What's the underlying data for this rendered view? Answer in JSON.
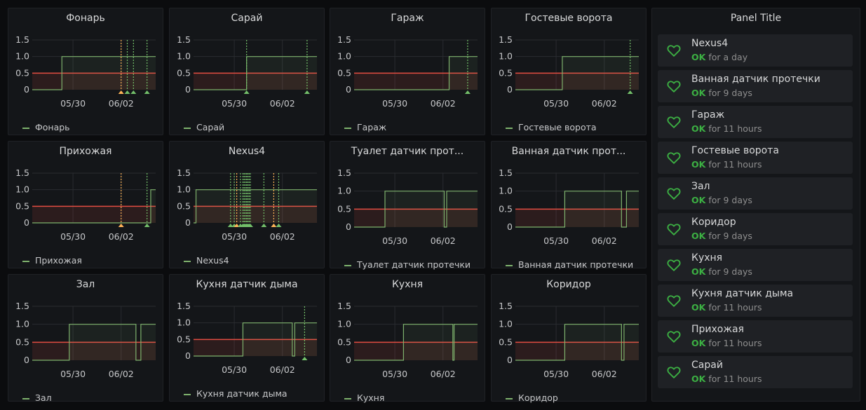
{
  "graphs": [
    {
      "title": "Фонарь",
      "legend": "Фонарь",
      "x_ticks": [
        "05/30",
        "06/02"
      ],
      "y_ticks": [
        "1.5",
        "1.0",
        "0.5",
        "0"
      ],
      "threshold": 0.5,
      "series": [
        [
          0,
          0
        ],
        [
          0.24,
          0
        ],
        [
          0.24,
          1
        ],
        [
          1,
          1
        ]
      ],
      "annotations": [
        {
          "x": 0.72,
          "color": "#ffb357"
        },
        {
          "x": 0.77,
          "color": "#73bf69"
        },
        {
          "x": 0.82,
          "color": "#73bf69"
        },
        {
          "x": 0.93,
          "color": "#73bf69"
        }
      ]
    },
    {
      "title": "Сарай",
      "legend": "Сарай",
      "x_ticks": [
        "05/30",
        "06/02"
      ],
      "y_ticks": [
        "1.5",
        "1.0",
        "0.5",
        "0"
      ],
      "threshold": 0.5,
      "series": [
        [
          0,
          0
        ],
        [
          0.43,
          0
        ],
        [
          0.43,
          1
        ],
        [
          1,
          1
        ]
      ],
      "annotations": [
        {
          "x": 0.43,
          "color": "#73bf69"
        },
        {
          "x": 0.92,
          "color": "#73bf69"
        }
      ]
    },
    {
      "title": "Гараж",
      "legend": "Гараж",
      "x_ticks": [
        "05/30",
        "06/02"
      ],
      "y_ticks": [
        "1.5",
        "1.0",
        "0.5",
        "0"
      ],
      "threshold": 0.5,
      "series": [
        [
          0,
          0
        ],
        [
          0.77,
          0
        ],
        [
          0.77,
          1
        ],
        [
          1,
          1
        ]
      ],
      "annotations": [
        {
          "x": 0.92,
          "color": "#73bf69"
        }
      ]
    },
    {
      "title": "Гостевые ворота",
      "legend": "Гостевые ворота",
      "x_ticks": [
        "05/30",
        "06/02"
      ],
      "y_ticks": [
        "1.5",
        "1.0",
        "0.5",
        "0"
      ],
      "threshold": 0.5,
      "series": [
        [
          0,
          0
        ],
        [
          0.38,
          0
        ],
        [
          0.38,
          1
        ],
        [
          1,
          1
        ]
      ],
      "annotations": [
        {
          "x": 0.93,
          "color": "#73bf69"
        }
      ]
    },
    {
      "title": "Прихожая",
      "legend": "Прихожая",
      "x_ticks": [
        "05/30",
        "06/02"
      ],
      "y_ticks": [
        "1.5",
        "1.0",
        "0.5",
        "0"
      ],
      "threshold": 0.5,
      "series": [
        [
          0,
          0
        ],
        [
          0.96,
          0
        ],
        [
          0.96,
          1
        ],
        [
          1,
          1
        ]
      ],
      "annotations": [
        {
          "x": 0.72,
          "color": "#ffb357"
        },
        {
          "x": 0.93,
          "color": "#73bf69"
        }
      ]
    },
    {
      "title": "Nexus4",
      "legend": "Nexus4",
      "x_ticks": [
        "05/30",
        "06/02"
      ],
      "y_ticks": [
        "1.5",
        "1.0",
        "0.5",
        "0"
      ],
      "threshold": 0.5,
      "series": [
        [
          0,
          0
        ],
        [
          0.02,
          0
        ],
        [
          0.02,
          1
        ],
        [
          1,
          1
        ]
      ],
      "annotations": [
        {
          "x": 0.3,
          "color": "#73bf69"
        },
        {
          "x": 0.33,
          "color": "#73bf69"
        },
        {
          "x": 0.35,
          "color": "#ffb357"
        },
        {
          "x": 0.38,
          "color": "#73bf69"
        },
        {
          "x": 0.4,
          "color": "#73bf69"
        },
        {
          "x": 0.41,
          "color": "#73bf69"
        },
        {
          "x": 0.42,
          "color": "#73bf69"
        },
        {
          "x": 0.43,
          "color": "#73bf69"
        },
        {
          "x": 0.44,
          "color": "#73bf69"
        },
        {
          "x": 0.45,
          "color": "#73bf69"
        },
        {
          "x": 0.46,
          "color": "#73bf69"
        },
        {
          "x": 0.57,
          "color": "#73bf69"
        },
        {
          "x": 0.65,
          "color": "#ffb357"
        },
        {
          "x": 0.69,
          "color": "#73bf69"
        }
      ]
    },
    {
      "title": "Туалет датчик прот...",
      "legend": "Туалет датчик протечки",
      "x_ticks": [
        "05/30",
        "06/02"
      ],
      "y_ticks": [
        "1.5",
        "1.0",
        "0.5",
        "0"
      ],
      "threshold": 0.5,
      "series": [
        [
          0,
          0
        ],
        [
          0.25,
          0
        ],
        [
          0.25,
          1
        ],
        [
          0.73,
          1
        ],
        [
          0.73,
          0
        ],
        [
          0.75,
          0
        ],
        [
          0.75,
          1
        ],
        [
          1,
          1
        ]
      ],
      "annotations": []
    },
    {
      "title": "Ванная датчик прот...",
      "legend": "Ванная датчик протечки",
      "x_ticks": [
        "05/30",
        "06/02"
      ],
      "y_ticks": [
        "1.5",
        "1.0",
        "0.5",
        "0"
      ],
      "threshold": 0.5,
      "series": [
        [
          0,
          0
        ],
        [
          0.4,
          0
        ],
        [
          0.4,
          1
        ],
        [
          0.86,
          1
        ],
        [
          0.86,
          0
        ],
        [
          0.9,
          0
        ],
        [
          0.9,
          1
        ],
        [
          1,
          1
        ]
      ],
      "annotations": []
    },
    {
      "title": "Зал",
      "legend": "Зал",
      "x_ticks": [
        "05/30",
        "06/02"
      ],
      "y_ticks": [
        "1.5",
        "1.0",
        "0.5",
        "0"
      ],
      "threshold": 0.5,
      "series": [
        [
          0,
          0
        ],
        [
          0.3,
          0
        ],
        [
          0.3,
          1
        ],
        [
          0.84,
          1
        ],
        [
          0.84,
          0
        ],
        [
          0.88,
          0
        ],
        [
          0.88,
          1
        ],
        [
          1,
          1
        ]
      ],
      "annotations": []
    },
    {
      "title": "Кухня датчик дыма",
      "legend": "Кухня датчик дыма",
      "x_ticks": [
        "05/30",
        "06/02"
      ],
      "y_ticks": [
        "1.5",
        "1.0",
        "0.5",
        "0"
      ],
      "threshold": 0.5,
      "series": [
        [
          0,
          0
        ],
        [
          0.4,
          0
        ],
        [
          0.4,
          1
        ],
        [
          0.8,
          1
        ],
        [
          0.8,
          0
        ],
        [
          0.82,
          0
        ],
        [
          0.82,
          1
        ],
        [
          1,
          1
        ]
      ],
      "annotations": [
        {
          "x": 0.9,
          "color": "#73bf69"
        }
      ]
    },
    {
      "title": "Кухня",
      "legend": "Кухня",
      "x_ticks": [
        "05/30",
        "06/02"
      ],
      "y_ticks": [
        "1.5",
        "1.0",
        "0.5",
        "0"
      ],
      "threshold": 0.5,
      "series": [
        [
          0,
          0
        ],
        [
          0.4,
          0
        ],
        [
          0.4,
          1
        ],
        [
          0.8,
          1
        ],
        [
          0.8,
          0
        ],
        [
          0.81,
          0
        ],
        [
          0.81,
          1
        ],
        [
          1,
          1
        ]
      ],
      "annotations": []
    },
    {
      "title": "Коридор",
      "legend": "Коридор",
      "x_ticks": [
        "05/30",
        "06/02"
      ],
      "y_ticks": [
        "1.5",
        "1.0",
        "0.5",
        "0"
      ],
      "threshold": 0.5,
      "series": [
        [
          0,
          0
        ],
        [
          0.4,
          0
        ],
        [
          0.4,
          1
        ],
        [
          0.86,
          1
        ],
        [
          0.86,
          0
        ],
        [
          0.88,
          0
        ],
        [
          0.88,
          1
        ],
        [
          1,
          1
        ]
      ],
      "annotations": []
    }
  ],
  "alert_panel": {
    "title": "Panel Title",
    "items": [
      {
        "name": "Nexus4",
        "state": "OK",
        "duration": "for a day"
      },
      {
        "name": "Ванная датчик протечки",
        "state": "OK",
        "duration": "for 9 days"
      },
      {
        "name": "Гараж",
        "state": "OK",
        "duration": "for 11 hours"
      },
      {
        "name": "Гостевые ворота",
        "state": "OK",
        "duration": "for 11 hours"
      },
      {
        "name": "Зал",
        "state": "OK",
        "duration": "for 9 days"
      },
      {
        "name": "Коридор",
        "state": "OK",
        "duration": "for 9 days"
      },
      {
        "name": "Кухня",
        "state": "OK",
        "duration": "for 9 days"
      },
      {
        "name": "Кухня датчик дыма",
        "state": "OK",
        "duration": "for 11 hours"
      },
      {
        "name": "Прихожая",
        "state": "OK",
        "duration": "for 11 hours"
      },
      {
        "name": "Сарай",
        "state": "OK",
        "duration": "for 11 hours"
      }
    ],
    "icon": "heart-icon",
    "ok_color": "#3cb043"
  },
  "colors": {
    "series": "#7eb26d",
    "threshold": "#e24d42",
    "annotation_ok": "#73bf69",
    "annotation_warn": "#ffb357"
  }
}
